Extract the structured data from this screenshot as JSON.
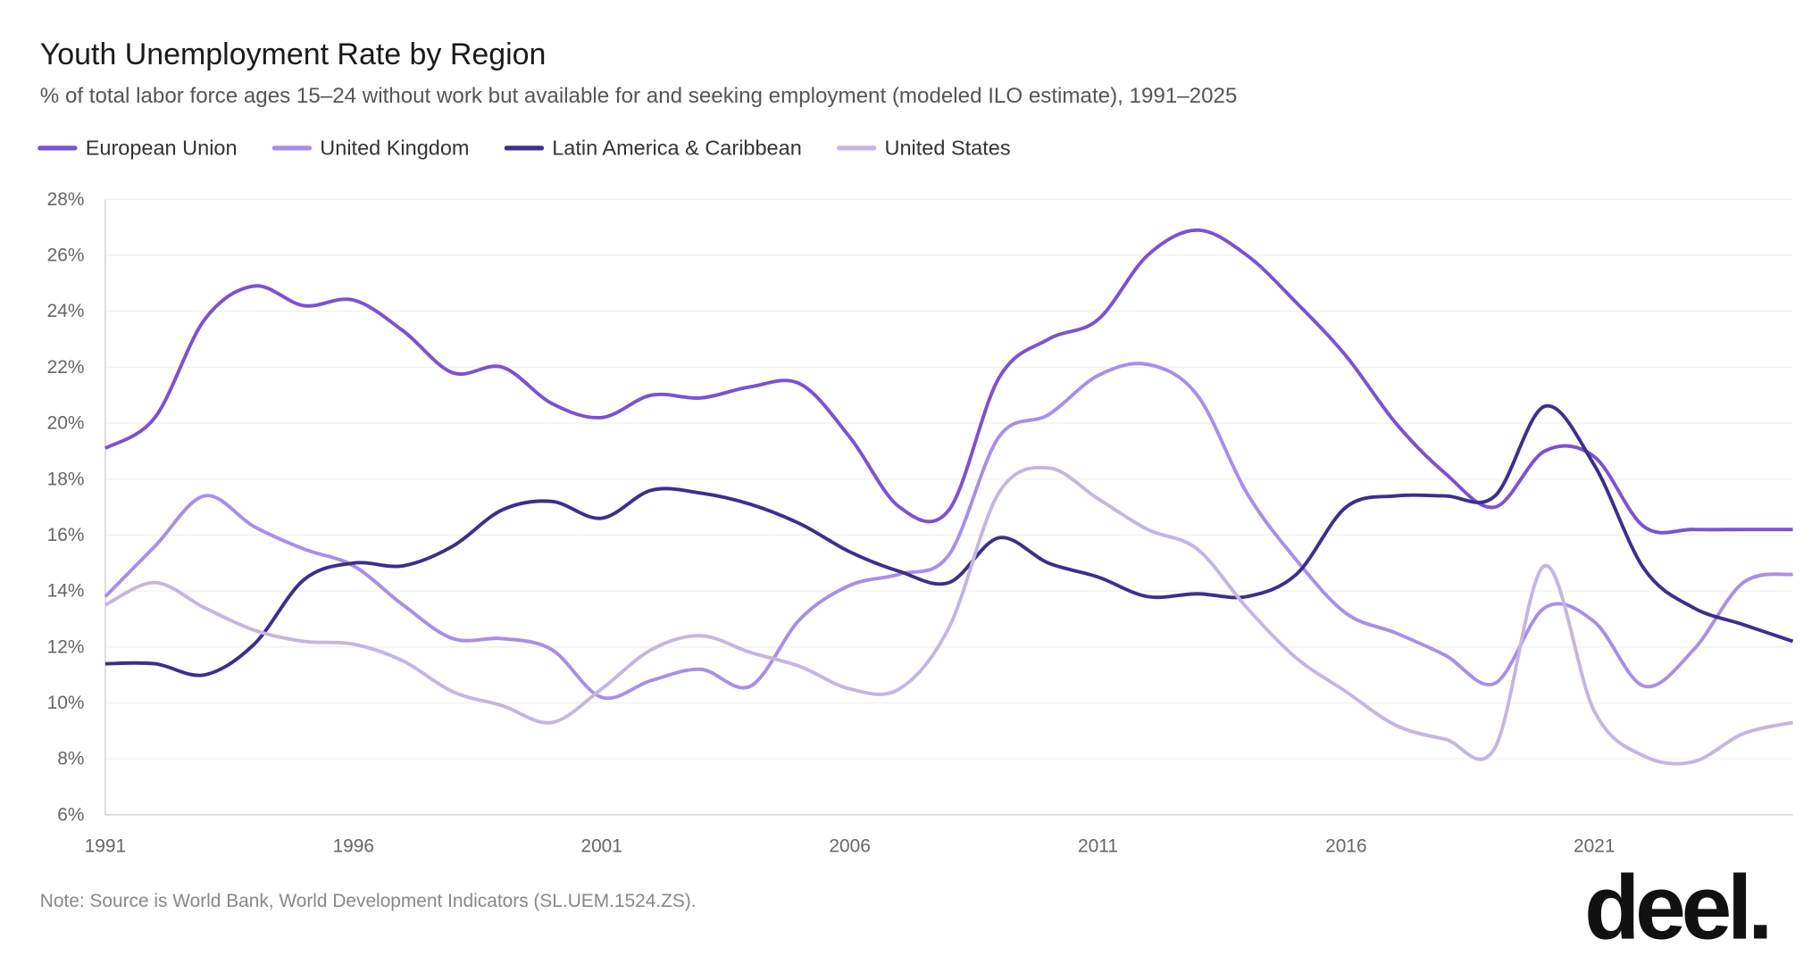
{
  "chart_data": {
    "type": "line",
    "title": "Youth Unemployment Rate by Region",
    "subtitle": "% of total labor force ages 15–24 without work but available for and seeking employment (modeled ILO estimate), 1991–2025",
    "note": "Note: Source is World Bank, World Development Indicators (SL.UEM.1524.ZS).",
    "logo": "deel.",
    "xlabel": "",
    "ylabel": "",
    "xlim": [
      1991,
      2025
    ],
    "ylim": [
      6,
      28
    ],
    "x_ticks": [
      "1991",
      "1996",
      "2001",
      "2006",
      "2011",
      "2016",
      "2021"
    ],
    "y_ticks": [
      "6%",
      "8%",
      "10%",
      "12%",
      "14%",
      "16%",
      "18%",
      "20%",
      "22%",
      "24%",
      "26%",
      "28%"
    ],
    "grid": "horizontal",
    "legend_placement": "top-left",
    "x": [
      1991,
      1992,
      1993,
      1994,
      1995,
      1996,
      1997,
      1998,
      1999,
      2000,
      2001,
      2002,
      2003,
      2004,
      2005,
      2006,
      2007,
      2008,
      2009,
      2010,
      2011,
      2012,
      2013,
      2014,
      2015,
      2016,
      2017,
      2018,
      2019,
      2020,
      2021,
      2022,
      2023,
      2024,
      2025
    ],
    "series": [
      {
        "name": "European Union",
        "color": "#7b52d3",
        "values": [
          19.1,
          20.2,
          23.7,
          24.9,
          24.2,
          24.4,
          23.3,
          21.8,
          22.0,
          20.7,
          20.2,
          21.0,
          20.9,
          21.3,
          21.4,
          19.5,
          17.0,
          16.9,
          21.6,
          23.0,
          23.7,
          26.0,
          26.9,
          26.0,
          24.3,
          22.4,
          20.0,
          18.2,
          17.0,
          19.0,
          18.8,
          16.3,
          16.2,
          16.2,
          16.2
        ]
      },
      {
        "name": "United Kingdom",
        "color": "#a98ee8",
        "values": [
          13.8,
          15.6,
          17.4,
          16.3,
          15.5,
          14.9,
          13.5,
          12.3,
          12.3,
          11.9,
          10.2,
          10.8,
          11.2,
          10.6,
          13.0,
          14.2,
          14.6,
          15.3,
          19.5,
          20.3,
          21.7,
          22.1,
          21.0,
          17.5,
          15.1,
          13.2,
          12.5,
          11.7,
          10.7,
          13.4,
          12.9,
          10.6,
          11.9,
          14.3,
          14.6
        ]
      },
      {
        "name": "Latin America & Caribbean",
        "color": "#3d2e8c",
        "values": [
          11.4,
          11.4,
          11.0,
          12.1,
          14.4,
          15.0,
          14.9,
          15.6,
          16.9,
          17.2,
          16.6,
          17.6,
          17.5,
          17.1,
          16.4,
          15.4,
          14.7,
          14.3,
          15.9,
          15.0,
          14.5,
          13.8,
          13.9,
          13.8,
          14.6,
          17.0,
          17.4,
          17.4,
          17.4,
          20.6,
          18.5,
          14.8,
          13.4,
          12.8,
          12.2
        ]
      },
      {
        "name": "United States",
        "color": "#c5b5e0",
        "values": [
          13.5,
          14.3,
          13.4,
          12.6,
          12.2,
          12.1,
          11.5,
          10.4,
          9.9,
          9.3,
          10.5,
          11.9,
          12.4,
          11.8,
          11.3,
          10.5,
          10.5,
          12.7,
          17.5,
          18.4,
          17.3,
          16.2,
          15.5,
          13.4,
          11.6,
          10.4,
          9.2,
          8.7,
          8.4,
          14.9,
          9.7,
          8.1,
          7.9,
          8.9,
          9.3
        ]
      }
    ]
  }
}
